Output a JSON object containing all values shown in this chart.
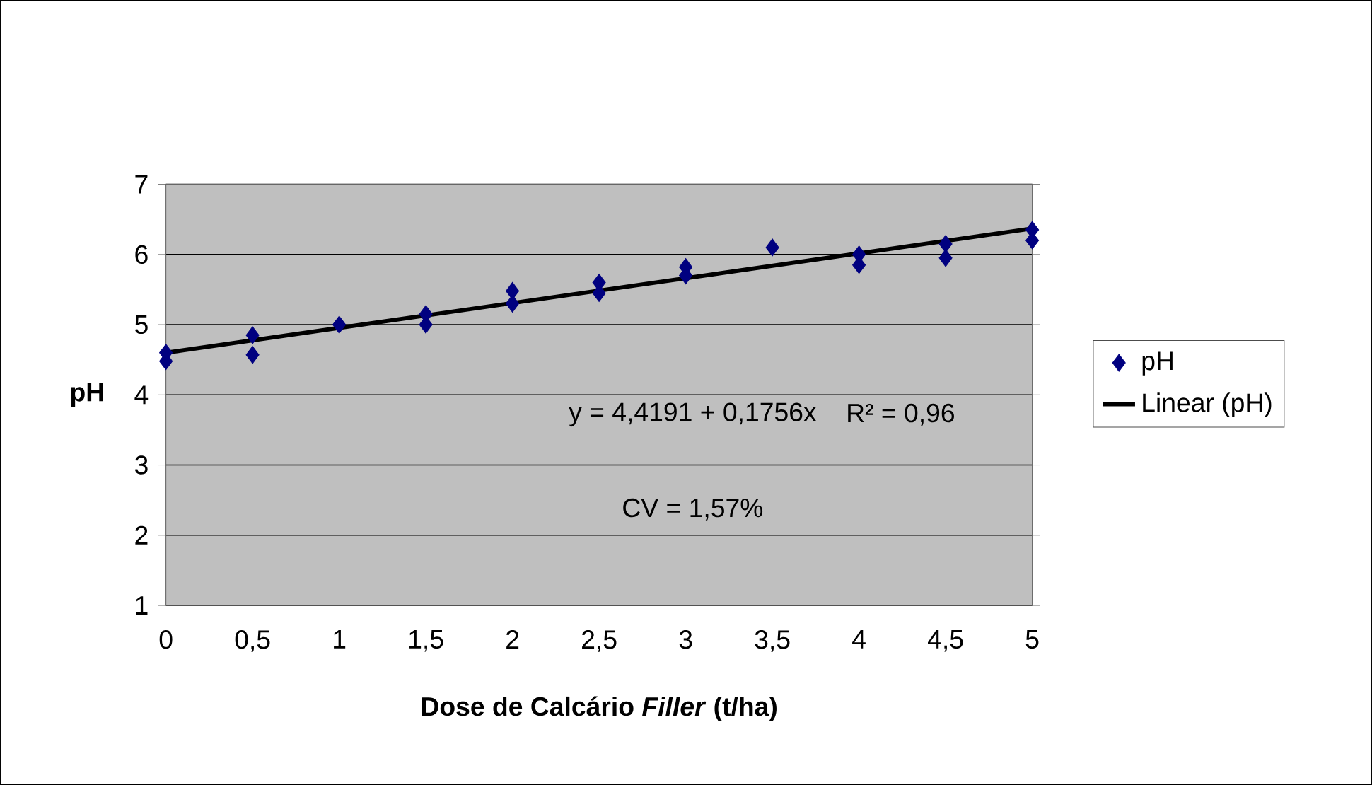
{
  "chart_data": {
    "type": "scatter",
    "xlabel": "Dose de Calcário *Filler* (t/ha)",
    "ylabel": "pH",
    "annotations": [
      "y = 4,4191 + 0,1756x",
      "R² = 0,96",
      "CV = 1,57%"
    ],
    "xlim": [
      0,
      5
    ],
    "ylim": [
      1,
      7
    ],
    "xticks": [
      0,
      {
        "value": 0.5,
        "label": "0,5"
      },
      1,
      {
        "value": 1.5,
        "label": "1,5"
      },
      2,
      {
        "value": 2.5,
        "label": "2,5"
      },
      3,
      {
        "value": 3.5,
        "label": "3,5"
      },
      4,
      {
        "value": 4.5,
        "label": "4,5"
      },
      5
    ],
    "yticks": [
      1,
      2,
      3,
      4,
      5,
      6,
      7
    ],
    "grid": "y",
    "legend": "right",
    "series": [
      {
        "name": "pH",
        "marker": "diamond",
        "color": "#000080",
        "x": [
          0,
          0,
          0.5,
          0.5,
          1,
          1.5,
          1.5,
          2,
          2,
          2.5,
          2.5,
          3,
          3,
          3.5,
          4,
          4,
          4.5,
          4.5,
          5,
          5
        ],
        "values": [
          4.6,
          4.48,
          4.85,
          4.57,
          5.0,
          5.15,
          5.0,
          5.48,
          5.3,
          5.6,
          5.45,
          5.82,
          5.7,
          6.1,
          6.0,
          5.85,
          6.15,
          5.95,
          6.35,
          6.2
        ]
      },
      {
        "name": "Linear (pH)",
        "type": "line",
        "marker": "none",
        "color": "#000000",
        "x": [
          0,
          5
        ],
        "values": [
          4.6,
          6.37
        ]
      }
    ]
  }
}
